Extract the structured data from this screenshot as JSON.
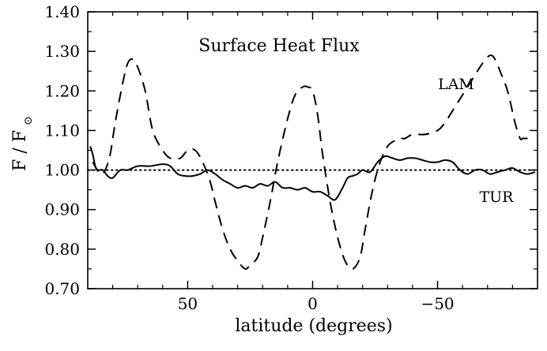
{
  "chart_data": {
    "type": "line",
    "title": "Surface Heat Flux",
    "xlabel": "latitude (degrees)",
    "ylabel": "F / F",
    "ylabel_subscript": "⊙",
    "xlim": [
      90,
      -90
    ],
    "ylim": [
      0.7,
      1.4
    ],
    "x_ticks": [
      50,
      0,
      -50
    ],
    "x_tick_labels": [
      "50",
      "0",
      "−50"
    ],
    "y_ticks": [
      0.7,
      0.8,
      0.9,
      1.0,
      1.1,
      1.2,
      1.3,
      1.4
    ],
    "y_tick_labels": [
      "0.70",
      "0.80",
      "0.90",
      "1.00",
      "1.10",
      "1.20",
      "1.30",
      "1.40"
    ],
    "grid": false,
    "reference_line": {
      "y": 1.0,
      "style": "dotted"
    },
    "series": [
      {
        "name": "LAM",
        "style": "dashed",
        "x": [
          88,
          85,
          83,
          81,
          79,
          76,
          74,
          72,
          70,
          67,
          64,
          60,
          57,
          53,
          50,
          47,
          44,
          41,
          39,
          36,
          33,
          30,
          27,
          25,
          22,
          20,
          17,
          14,
          10,
          7,
          4,
          2,
          0,
          -2,
          -4,
          -7,
          -10,
          -13,
          -16,
          -19,
          -21,
          -24,
          -27,
          -30,
          -33,
          -35,
          -37,
          -40,
          -45,
          -50,
          -53,
          -56,
          -60,
          -64,
          -68,
          -71,
          -73,
          -75,
          -78,
          -81,
          -83,
          -84,
          -85,
          -87
        ],
        "values": [
          1.02,
          0.99,
          1.0,
          1.04,
          1.12,
          1.22,
          1.27,
          1.28,
          1.26,
          1.2,
          1.1,
          1.05,
          1.03,
          1.03,
          1.05,
          1.05,
          1.02,
          0.97,
          0.92,
          0.85,
          0.8,
          0.77,
          0.75,
          0.76,
          0.78,
          0.83,
          0.92,
          1.02,
          1.13,
          1.19,
          1.21,
          1.21,
          1.2,
          1.14,
          1.04,
          0.92,
          0.83,
          0.77,
          0.75,
          0.78,
          0.85,
          0.95,
          1.02,
          1.06,
          1.075,
          1.08,
          1.08,
          1.09,
          1.09,
          1.1,
          1.12,
          1.15,
          1.19,
          1.23,
          1.27,
          1.29,
          1.28,
          1.25,
          1.2,
          1.12,
          1.08,
          1.08,
          1.08,
          1.08
        ]
      },
      {
        "name": "TUR",
        "style": "solid",
        "x": [
          89,
          88,
          87,
          86,
          84,
          82,
          80,
          77,
          74,
          70,
          65,
          60,
          57,
          54,
          51,
          48,
          45,
          42,
          39,
          36,
          33,
          30,
          27,
          24,
          21,
          18,
          15,
          12,
          9,
          6,
          3,
          0,
          -3,
          -6,
          -9,
          -12,
          -14,
          -16,
          -18,
          -20,
          -23,
          -26,
          -29,
          -32,
          -35,
          -38,
          -41,
          -44,
          -47,
          -50,
          -53,
          -56,
          -59,
          -62,
          -65,
          -68,
          -71,
          -74,
          -77,
          -80,
          -83,
          -86,
          -89
        ],
        "values": [
          1.06,
          1.04,
          1.01,
          1.0,
          1.0,
          0.985,
          0.98,
          1.0,
          1.0,
          1.01,
          1.01,
          1.015,
          1.01,
          0.99,
          0.985,
          0.985,
          0.99,
          1.0,
          0.99,
          0.975,
          0.965,
          0.955,
          0.96,
          0.955,
          0.965,
          0.96,
          0.97,
          0.955,
          0.955,
          0.95,
          0.955,
          0.945,
          0.945,
          0.935,
          0.925,
          0.955,
          0.98,
          0.985,
          0.99,
          1.0,
          0.995,
          1.02,
          1.035,
          1.03,
          1.025,
          1.03,
          1.03,
          1.025,
          1.02,
          1.02,
          1.025,
          1.02,
          1.0,
          0.99,
          1.0,
          1.0,
          0.99,
          0.995,
          1.0,
          1.005,
          0.995,
          0.99,
          0.995
        ]
      }
    ],
    "annotations": [
      "LAM",
      "TUR"
    ]
  }
}
